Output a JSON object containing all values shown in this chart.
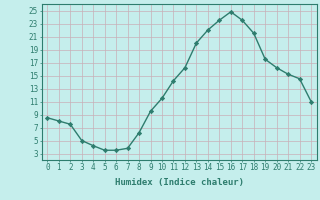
{
  "x": [
    0,
    1,
    2,
    3,
    4,
    5,
    6,
    7,
    8,
    9,
    10,
    11,
    12,
    13,
    14,
    15,
    16,
    17,
    18,
    19,
    20,
    21,
    22,
    23
  ],
  "y": [
    8.5,
    8.0,
    7.5,
    5.0,
    4.2,
    3.5,
    3.5,
    3.8,
    6.2,
    9.5,
    11.5,
    14.2,
    16.2,
    20.0,
    22.0,
    23.5,
    24.8,
    23.5,
    21.5,
    17.5,
    16.2,
    15.2,
    14.5,
    11.0
  ],
  "line_color": "#2e7d6e",
  "marker": "D",
  "markersize": 2.2,
  "linewidth": 1.0,
  "bg_color": "#c5eeec",
  "grid_color": "#c8b0b8",
  "xlabel": "Humidex (Indice chaleur)",
  "xlabel_fontsize": 6.5,
  "xlabel_bold": true,
  "xtick_labels": [
    "0",
    "1",
    "2",
    "3",
    "4",
    "5",
    "6",
    "7",
    "8",
    "9",
    "10",
    "11",
    "12",
    "13",
    "14",
    "15",
    "16",
    "17",
    "18",
    "19",
    "20",
    "21",
    "22",
    "23"
  ],
  "ytick_values": [
    3,
    5,
    7,
    9,
    11,
    13,
    15,
    17,
    19,
    21,
    23,
    25
  ],
  "ylim": [
    2,
    26
  ],
  "xlim": [
    -0.5,
    23.5
  ],
  "tick_fontsize": 5.5
}
